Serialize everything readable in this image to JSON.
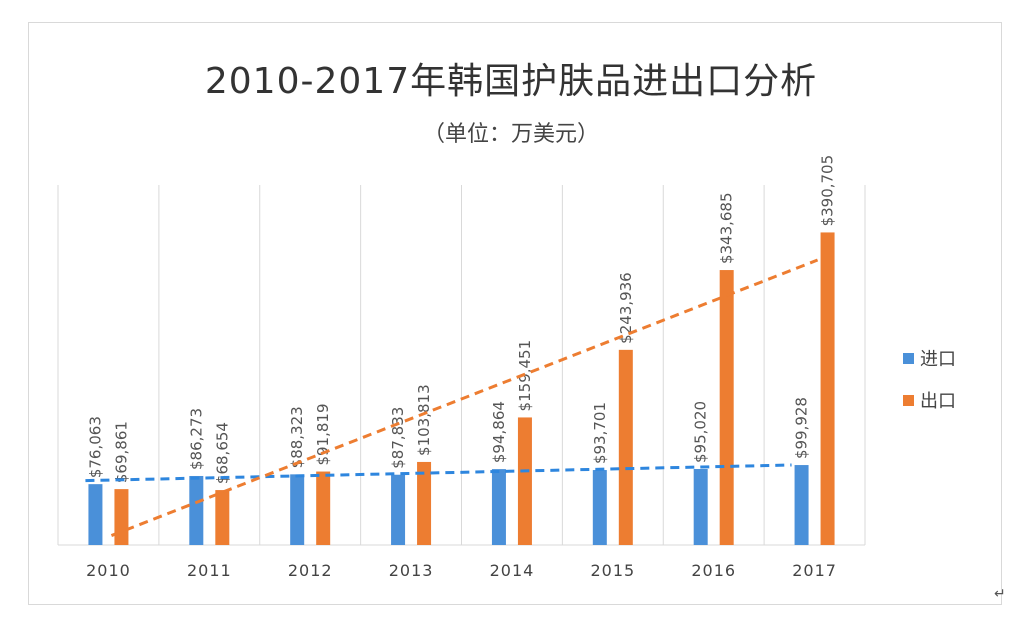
{
  "chart_data": {
    "type": "bar",
    "title": "2010-2017年韩国护肤品进出口分析",
    "subtitle": "（单位：万美元）",
    "categories": [
      "2010",
      "2011",
      "2012",
      "2013",
      "2014",
      "2015",
      "2016",
      "2017"
    ],
    "series": [
      {
        "name": "进口",
        "color": "#4a90d9",
        "values": [
          76063,
          86273,
          88323,
          87833,
          94864,
          93701,
          95020,
          99928
        ],
        "labels": [
          "$76,063",
          "$86,273",
          "$88,323",
          "$87,833",
          "$94,864",
          "$93,701",
          "$95,020",
          "$99,928"
        ]
      },
      {
        "name": "出口",
        "color": "#ed7d31",
        "values": [
          69861,
          68654,
          91819,
          103813,
          159451,
          243936,
          343685,
          390705
        ],
        "labels": [
          "$69,861",
          "$68,654",
          "$91,819",
          "$103,813",
          "$159,451",
          "$243,936",
          "$343,685",
          "$390,705"
        ]
      }
    ],
    "trendlines": "linear, dashed, one per series",
    "ylim": [
      0,
      450000
    ],
    "y_axis_visible": false,
    "grid": "vertical category separators",
    "legend": "right"
  }
}
